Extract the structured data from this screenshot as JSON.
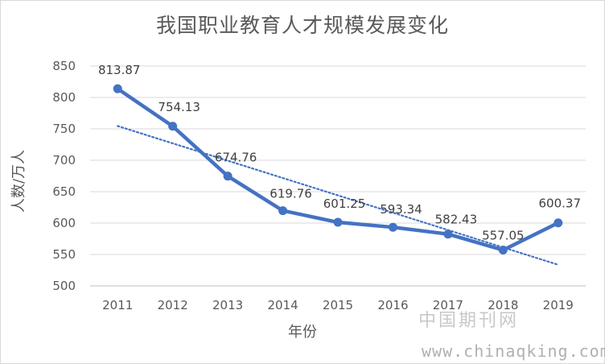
{
  "chart_data": {
    "type": "line",
    "title": "我国职业教育人才规模发展变化",
    "xlabel": "年份",
    "ylabel": "人数/万人",
    "categories": [
      "2011",
      "2012",
      "2013",
      "2014",
      "2015",
      "2016",
      "2017",
      "2018",
      "2019"
    ],
    "series": [
      {
        "values": [
          813.87,
          754.13,
          674.76,
          619.76,
          601.25,
          593.34,
          582.43,
          557.05,
          600.37
        ],
        "color": "#4472c4",
        "data_labels": [
          "813.87",
          "754.13",
          "674.76",
          "619.76",
          "601.25",
          "593.34",
          "582.43",
          "557.05",
          "600.37"
        ]
      }
    ],
    "trendline": {
      "type": "linear",
      "style": "dotted",
      "color": "#4472c4"
    },
    "ylim": [
      500,
      850
    ],
    "yticks": [
      500,
      550,
      600,
      650,
      700,
      750,
      800,
      850
    ],
    "grid": true,
    "legend": "none"
  },
  "watermark": {
    "line1": "中国期刊网",
    "line2": "www.chinaqking.com"
  }
}
